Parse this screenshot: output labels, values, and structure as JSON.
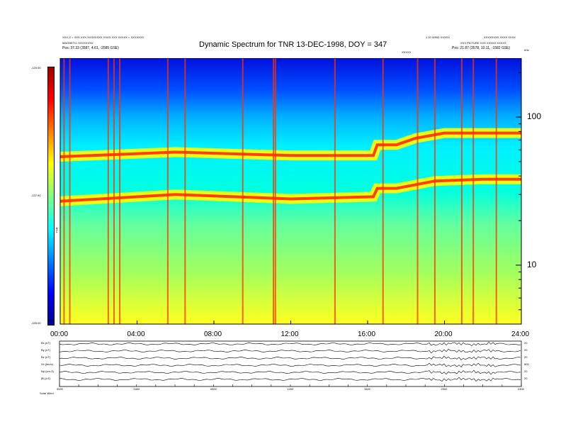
{
  "header": {
    "title": "Dynamic Spectrum for TNR 13-DEC-1998, DOY = 347",
    "left_line1": "XXX-X = XXX-XXX-XXXXXXXX XXXX XXX XXXXX = XXXXXXX",
    "left_line2": "MAGNETIC XXXXXXXX",
    "left_pos": "Pos:   37.33 (3587, 4.61, -2585 GSE)",
    "right_line1": "1.10 WIND XXXXX",
    "right_line2": "XXXXXXXX XXXX XXXX",
    "right_line3": "XXX PICTURE XXX XXXXX XXXXX",
    "right_pos": "Pos:   21.87 (3578, 10.11, -1582 GSE)",
    "event_label": "XXXXX",
    "khz_label": "kHz"
  },
  "colorbar": {
    "top_label": "-120.00",
    "mid_label": "-137.50",
    "bottom_label": "-155.00",
    "side_label": "TNR",
    "stops": [
      "#00008c",
      "#0000ff",
      "#0080ff",
      "#00ffff",
      "#80ff80",
      "#ffff00",
      "#ff8000",
      "#ff0000",
      "#a00000"
    ]
  },
  "bottom_panel": {
    "row_labels": [
      "Bx (nT)",
      "By (nT)",
      "Bz (nT)",
      "Vx (km/s)",
      "Np (cm-3)",
      "|B| (nT)"
    ],
    "right_labels": [
      "20",
      "20",
      "20",
      "500",
      "20",
      "20"
    ],
    "tick_labels": [
      "0000",
      "0400",
      "0800",
      "1200",
      "1600",
      "2000",
      "2400"
    ],
    "corner_label": "Solar Wind"
  },
  "chart_data": {
    "type": "heatmap",
    "title": "Dynamic Spectrum for TNR 13-DEC-1998, DOY = 347",
    "x_ticks": [
      "00:00",
      "04:00",
      "08:00",
      "12:00",
      "16:00",
      "20:00",
      "24:00"
    ],
    "x_range_hours": [
      0,
      24
    ],
    "y_scale": "log",
    "y_ticks": [
      "100",
      "10"
    ],
    "y_unit": "kHz",
    "y_range_khz": [
      4,
      250
    ],
    "color_range_db": [
      -155.0,
      -120.0
    ],
    "emission_bands": [
      {
        "points": [
          [
            0,
            54
          ],
          [
            6,
            58
          ],
          [
            12,
            55
          ],
          [
            16.3,
            55
          ],
          [
            16.5,
            65
          ],
          [
            17.5,
            65
          ],
          [
            18.5,
            72
          ],
          [
            20,
            78
          ],
          [
            22,
            78
          ],
          [
            24,
            78
          ]
        ]
      },
      {
        "points": [
          [
            0,
            27
          ],
          [
            6,
            30
          ],
          [
            12,
            28
          ],
          [
            16.3,
            29
          ],
          [
            16.5,
            33
          ],
          [
            17.5,
            33
          ],
          [
            19.5,
            37
          ],
          [
            22,
            38
          ],
          [
            24,
            38
          ]
        ]
      }
    ],
    "spikes_hours": [
      0.2,
      0.5,
      2.5,
      2.8,
      3.1,
      5.6,
      6.5,
      9.5,
      11.1,
      11.2,
      14.3,
      16.8,
      18.6,
      19.5,
      20.9,
      21.5,
      22.7
    ]
  }
}
